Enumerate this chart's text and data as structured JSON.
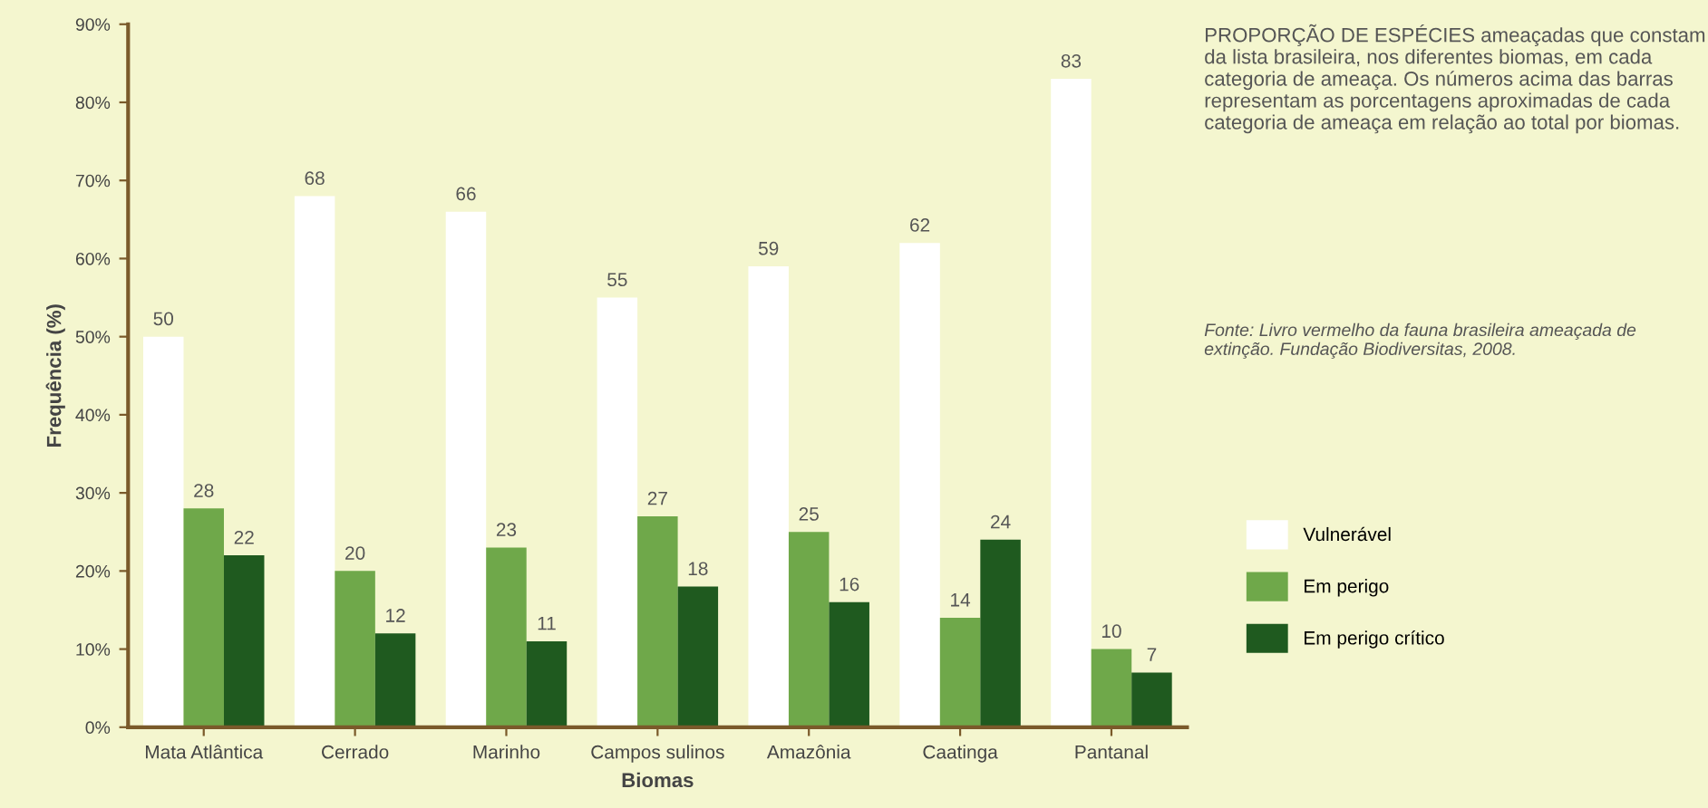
{
  "chart_data": {
    "type": "bar",
    "xlabel": "Biomas",
    "ylabel": "Frequência (%)",
    "categories": [
      "Mata Atlântica",
      "Cerrado",
      "Marinho",
      "Campos sulinos",
      "Amazônia",
      "Caatinga",
      "Pantanal"
    ],
    "series": [
      {
        "name": "Vulnerável",
        "color": "#ffffff",
        "values": [
          50,
          68,
          66,
          55,
          59,
          62,
          83
        ]
      },
      {
        "name": "Em perigo",
        "color": "#6fa84a",
        "values": [
          28,
          20,
          23,
          27,
          25,
          14,
          10
        ]
      },
      {
        "name": "Em perigo crítico",
        "color": "#1f5a1f",
        "values": [
          22,
          12,
          11,
          18,
          16,
          24,
          7
        ]
      }
    ],
    "ylim": [
      0,
      90
    ],
    "yticks": [
      {
        "value": 0,
        "label": "0%"
      },
      {
        "value": 10,
        "label": "10%"
      },
      {
        "value": 20,
        "label": "20%"
      },
      {
        "value": 30,
        "label": "30%"
      },
      {
        "value": 40,
        "label": "40%"
      },
      {
        "value": 50,
        "label": "50%"
      },
      {
        "value": 60,
        "label": "60%"
      },
      {
        "value": 70,
        "label": "70%"
      },
      {
        "value": 80,
        "label": "80%"
      },
      {
        "value": 90,
        "label": "90%"
      }
    ],
    "data_labels": true,
    "grid": false,
    "legend": "right",
    "annotations": [
      "PROPORÇÃO DE ESPÉCIES ameaçadas que constam da lista brasileira, nos diferentes biomas, em cada categoria de ameaça. Os números acima das barras representam as porcentagens aproximadas de cada categoria de ameaça em relação ao total por biomas.",
      "Fonte: Livro vermelho da fauna brasileira ameaçada de extinção. Fundação Biodiversitas, 2008."
    ]
  }
}
